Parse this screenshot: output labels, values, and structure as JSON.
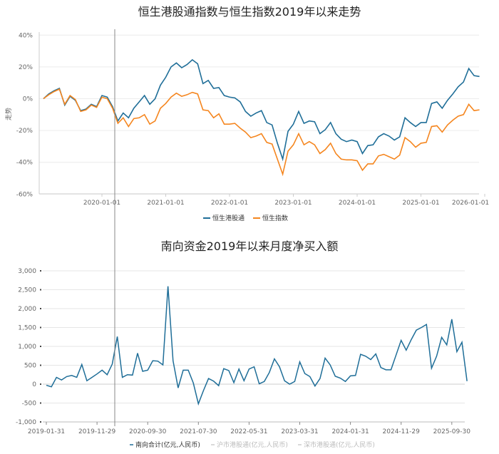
{
  "chart_data": [
    {
      "type": "line",
      "title": "恒生港股通指数与恒生指数2019年以来走势",
      "ylabel": "走势",
      "ylim": [
        -60,
        40
      ],
      "yticks": [
        "40%",
        "20%",
        "0%",
        "-20%",
        "-40%",
        "-60%"
      ],
      "ytick_values": [
        40,
        20,
        0,
        -20,
        -40,
        -60
      ],
      "xticks": [
        "2020-01-01",
        "2021-01-01",
        "2022-01-01",
        "2023-01-01",
        "2024-01-01",
        "2025-01-01",
        "2026-01-01"
      ],
      "x_start": "2019-02",
      "x_end": "2025-12",
      "x_unit": "month",
      "series": [
        {
          "name": "恒生港股通",
          "color": "#1f6e98",
          "values": [
            0,
            3,
            5,
            6.5,
            -4,
            1.5,
            -1,
            -7.5,
            -6.5,
            -3.5,
            -5,
            2,
            1,
            -5,
            -14,
            -9,
            -12,
            -6,
            -2,
            2,
            -3.5,
            0,
            8.5,
            13.5,
            20,
            22.5,
            19.5,
            21.5,
            24.5,
            22,
            9.5,
            11.5,
            6.5,
            7,
            2,
            1,
            0.5,
            -2,
            -8,
            -11,
            -9,
            -7.5,
            -15,
            -16.5,
            -28,
            -38,
            -20.5,
            -16,
            -8,
            -15.5,
            -14,
            -14.5,
            -22,
            -19.5,
            -15,
            -22,
            -25.5,
            -27,
            -26,
            -27,
            -34.5,
            -29.5,
            -29,
            -24,
            -22,
            -23.5,
            -26,
            -24,
            -12,
            -15,
            -17.5,
            -15,
            -15,
            -3,
            -2,
            -6,
            -1,
            3,
            7.5,
            10.5,
            19,
            14.5,
            14
          ]
        },
        {
          "name": "恒生指数",
          "color": "#f5861f",
          "values": [
            0,
            2.5,
            4.5,
            6,
            -3.5,
            2,
            -0.5,
            -8,
            -7,
            -4,
            -5.5,
            1,
            0,
            -6,
            -15.5,
            -12,
            -17.5,
            -12.5,
            -12,
            -10,
            -16,
            -14,
            -6,
            -3,
            1,
            3.5,
            1.5,
            2.5,
            4,
            3,
            -7,
            -7.5,
            -12,
            -9.5,
            -16,
            -16,
            -15.5,
            -18.5,
            -21,
            -24.5,
            -23.5,
            -22,
            -27.5,
            -28.5,
            -38,
            -47.5,
            -33,
            -29,
            -22,
            -29,
            -27,
            -29,
            -34.5,
            -32,
            -28,
            -34.5,
            -38,
            -38.5,
            -38.5,
            -39,
            -45,
            -41,
            -41,
            -36,
            -35,
            -36.5,
            -38,
            -35.5,
            -24.5,
            -27,
            -30.5,
            -28,
            -27.5,
            -17.5,
            -17,
            -21,
            -16.5,
            -13.5,
            -11,
            -10,
            -3.5,
            -7.5,
            -7
          ]
        }
      ],
      "legend": "bottom-center",
      "grid": true
    },
    {
      "type": "line",
      "title": "南向资金2019年以来月度净买入额",
      "ylim": [
        -1000,
        3000
      ],
      "yticks": [
        "3,000",
        "2,500",
        "2,000",
        "1,500",
        "1,000",
        "500",
        "0",
        "-500",
        "-1,000"
      ],
      "ytick_values": [
        3000,
        2500,
        2000,
        1500,
        1000,
        500,
        0,
        -500,
        -1000
      ],
      "xticks": [
        "2019-01-31",
        "2019-11-29",
        "2020-09-30",
        "2021-07-30",
        "2022-05-31",
        "2023-03-31",
        "2024-01-31",
        "2024-11-29",
        "2025-09-30"
      ],
      "x_start": "2019-01",
      "x_end": "2025-12",
      "x_unit": "month",
      "series": [
        {
          "name": "南向合计(亿元,人民币)",
          "color": "#1f6e98",
          "values": [
            -30,
            -70,
            180,
            110,
            200,
            230,
            180,
            520,
            90,
            180,
            270,
            370,
            250,
            530,
            1260,
            180,
            250,
            240,
            820,
            340,
            370,
            620,
            610,
            510,
            2590,
            620,
            -100,
            370,
            370,
            30,
            -520,
            -170,
            150,
            80,
            -40,
            410,
            360,
            40,
            400,
            90,
            400,
            460,
            10,
            70,
            310,
            670,
            460,
            90,
            0,
            70,
            590,
            280,
            200,
            -50,
            150,
            690,
            510,
            210,
            160,
            70,
            220,
            230,
            790,
            740,
            650,
            800,
            440,
            380,
            380,
            770,
            1160,
            900,
            1180,
            1430,
            1500,
            1580,
            420,
            740,
            1240,
            1040,
            1720,
            860,
            1110,
            80
          ]
        },
        {
          "name": "沪市港股通(亿元,人民币)",
          "color": "#cccccc",
          "hidden": true,
          "values": []
        },
        {
          "name": "深市港股通(亿元,人民币)",
          "color": "#cccccc",
          "hidden": true,
          "values": []
        }
      ],
      "legend": "bottom-center",
      "grid": true
    }
  ]
}
